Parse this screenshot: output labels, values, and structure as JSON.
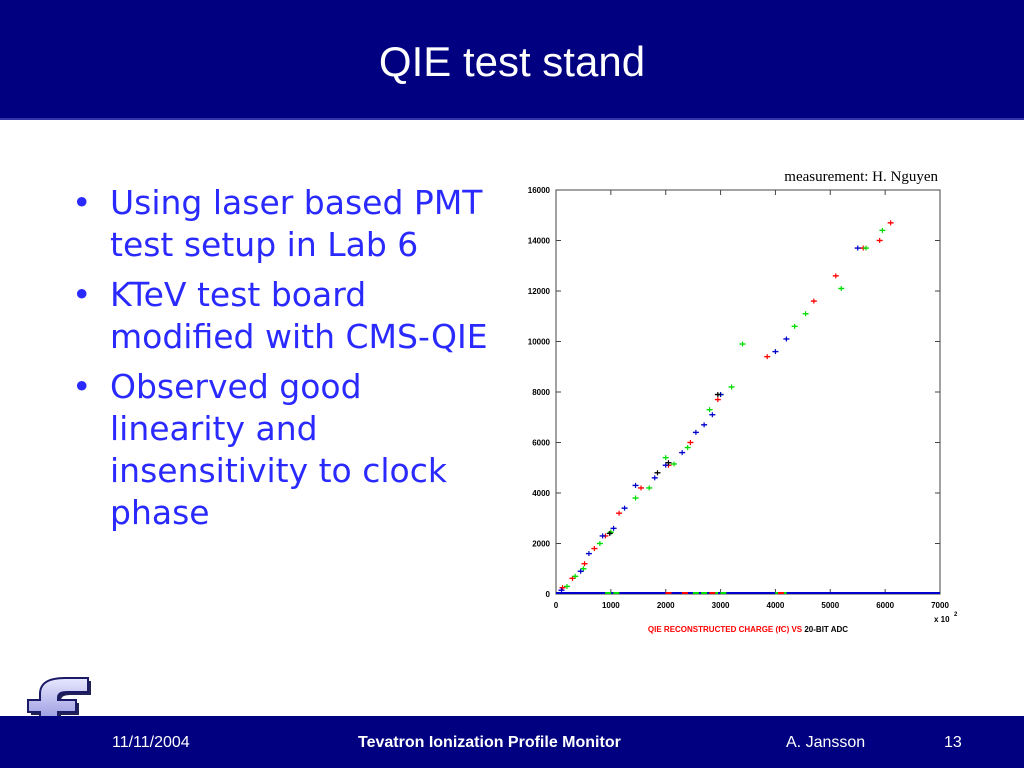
{
  "slide": {
    "title": "QIE test stand",
    "bullets": [
      "Using laser based PMT test setup in Lab 6",
      "KTeV test board modified with CMS-QIE",
      "Observed good linearity and insensitivity to clock phase"
    ],
    "credit": "measurement:  H. Nguyen"
  },
  "footer": {
    "date": "11/11/2004",
    "title": "Tevatron Ionization Profile Monitor",
    "author": "A. Jansson",
    "page": "13"
  },
  "colors": {
    "bar": "#000080",
    "bullet_text": "#2a2aff",
    "series_red": "#ff0000",
    "series_green": "#00dd00",
    "series_blue": "#0000cc"
  },
  "chart_data": {
    "type": "scatter",
    "xlabel_part1": "QIE RECONSTRUCTED CHARGE (fC) VS",
    "xlabel_part2": "20-BIT ADC",
    "x_multiplier": "x 10",
    "x_multiplier_exp": "2",
    "xlim": [
      0,
      7000
    ],
    "ylim": [
      0,
      16000
    ],
    "x_ticks": [
      "0",
      "1000",
      "2000",
      "3000",
      "4000",
      "5000",
      "6000",
      "7000"
    ],
    "y_ticks": [
      "0",
      "2000",
      "4000",
      "6000",
      "8000",
      "10000",
      "12000",
      "14000",
      "16000"
    ],
    "series": [
      {
        "color": "#ff0000",
        "points": [
          [
            120,
            250
          ],
          [
            300,
            620
          ],
          [
            520,
            1200
          ],
          [
            700,
            1800
          ],
          [
            900,
            2300
          ],
          [
            1150,
            3200
          ],
          [
            1550,
            4200
          ],
          [
            2050,
            5100
          ],
          [
            2450,
            6000
          ],
          [
            2950,
            7700
          ],
          [
            3850,
            9400
          ],
          [
            4700,
            11600
          ],
          [
            5100,
            12600
          ],
          [
            5600,
            13700
          ],
          [
            5900,
            14000
          ],
          [
            6100,
            14700
          ]
        ]
      },
      {
        "color": "#00dd00",
        "points": [
          [
            200,
            300
          ],
          [
            350,
            700
          ],
          [
            500,
            1000
          ],
          [
            800,
            2000
          ],
          [
            1000,
            2450
          ],
          [
            1450,
            3800
          ],
          [
            1700,
            4200
          ],
          [
            2000,
            5400
          ],
          [
            2150,
            5150
          ],
          [
            2400,
            5800
          ],
          [
            2800,
            7300
          ],
          [
            3000,
            7900
          ],
          [
            3200,
            8200
          ],
          [
            3400,
            9900
          ],
          [
            4350,
            10600
          ],
          [
            4550,
            11100
          ],
          [
            5200,
            12100
          ],
          [
            5650,
            13700
          ],
          [
            5950,
            14400
          ]
        ]
      },
      {
        "color": "#0000cc",
        "points": [
          [
            100,
            150
          ],
          [
            450,
            900
          ],
          [
            600,
            1600
          ],
          [
            850,
            2300
          ],
          [
            1050,
            2600
          ],
          [
            1250,
            3400
          ],
          [
            1450,
            4300
          ],
          [
            1800,
            4600
          ],
          [
            2000,
            5100
          ],
          [
            2300,
            5600
          ],
          [
            2550,
            6400
          ],
          [
            2700,
            6700
          ],
          [
            2850,
            7100
          ],
          [
            3000,
            7900
          ],
          [
            4000,
            9600
          ],
          [
            4200,
            10100
          ],
          [
            5500,
            13700
          ]
        ]
      },
      {
        "color": "#000000",
        "points": [
          [
            980,
            2400
          ],
          [
            1850,
            4800
          ],
          [
            2050,
            5200
          ],
          [
            2950,
            7900
          ]
        ]
      }
    ],
    "baseline_markers": [
      {
        "color": "#00dd00",
        "x": [
          950,
          1100,
          2550,
          2700,
          2900,
          3050,
          4050,
          4150
        ]
      },
      {
        "color": "#ff0000",
        "x": [
          2050,
          2350,
          2850,
          4100
        ]
      }
    ]
  }
}
